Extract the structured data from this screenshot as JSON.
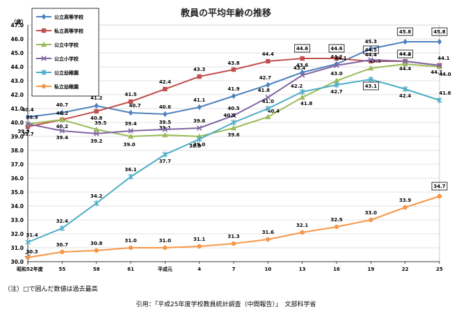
{
  "chart_data": {
    "type": "line",
    "title": "教員の平均年齢の推移",
    "ylabel": "（歳）",
    "xlabel": "",
    "ylim": [
      30.0,
      47.0
    ],
    "yticks": [
      "30.0",
      "31.0",
      "32.0",
      "33.0",
      "34.0",
      "35.0",
      "36.0",
      "37.0",
      "38.0",
      "39.0",
      "40.0",
      "41.0",
      "42.0",
      "43.0",
      "44.0",
      "45.0",
      "46.0",
      "47.0"
    ],
    "categories": [
      "昭和52年度",
      "55",
      "58",
      "61",
      "平成元",
      "4",
      "7",
      "10",
      "13",
      "16",
      "19",
      "22",
      "25"
    ],
    "grid": true,
    "legend_position": "top-left",
    "series": [
      {
        "name": "公立高等学校",
        "color": "#4f81bd",
        "marker": "diamond",
        "values": [
          40.4,
          40.7,
          41.2,
          40.7,
          40.6,
          41.1,
          41.9,
          42.7,
          43.6,
          44.2,
          45.3,
          45.8,
          45.8
        ],
        "boxed": [
          false,
          false,
          false,
          false,
          false,
          false,
          false,
          false,
          false,
          false,
          false,
          true,
          true
        ]
      },
      {
        "name": "私立高等学校",
        "color": "#c0504d",
        "marker": "square",
        "values": [
          39.7,
          40.2,
          40.8,
          41.5,
          42.4,
          43.3,
          43.8,
          44.4,
          44.6,
          44.6,
          44.4,
          44.4,
          44.1
        ],
        "boxed": [
          false,
          false,
          false,
          false,
          false,
          false,
          false,
          false,
          true,
          true,
          false,
          false,
          false
        ]
      },
      {
        "name": "公立中学校",
        "color": "#9bbb59",
        "marker": "triangle",
        "values": [
          39.9,
          40.2,
          39.5,
          39.0,
          39.1,
          39.0,
          39.6,
          40.4,
          41.8,
          43.0,
          43.9,
          44.2,
          44.0
        ],
        "boxed": [
          false,
          false,
          false,
          false,
          false,
          false,
          false,
          false,
          false,
          false,
          false,
          true,
          false
        ]
      },
      {
        "name": "公立小学校",
        "color": "#8064a2",
        "marker": "x",
        "values": [
          39.9,
          39.4,
          39.2,
          39.4,
          39.5,
          39.6,
          40.5,
          41.8,
          43.4,
          44.1,
          44.5,
          44.4,
          44.1
        ],
        "boxed": [
          false,
          false,
          false,
          false,
          false,
          false,
          false,
          false,
          false,
          false,
          true,
          false,
          false
        ]
      },
      {
        "name": "公立幼稚園",
        "color": "#4bacc6",
        "marker": "star",
        "values": [
          31.4,
          32.4,
          34.2,
          36.1,
          37.7,
          38.8,
          40.0,
          41.0,
          42.2,
          42.7,
          43.1,
          42.4,
          41.6
        ],
        "boxed": [
          false,
          false,
          false,
          false,
          false,
          false,
          false,
          false,
          false,
          false,
          true,
          false,
          false
        ]
      },
      {
        "name": "私立幼稚園",
        "color": "#f79646",
        "marker": "circle",
        "values": [
          30.3,
          30.7,
          30.8,
          31.0,
          31.0,
          31.1,
          31.3,
          31.6,
          32.1,
          32.5,
          33.0,
          33.9,
          34.7
        ],
        "boxed": [
          false,
          false,
          false,
          false,
          false,
          false,
          false,
          false,
          false,
          false,
          false,
          false,
          true
        ]
      }
    ]
  },
  "note": "（注）□で囲んだ数値は過去最高",
  "source": "引用：「平成25年度学校教員統計調査（中間報告）」　文部科学省"
}
